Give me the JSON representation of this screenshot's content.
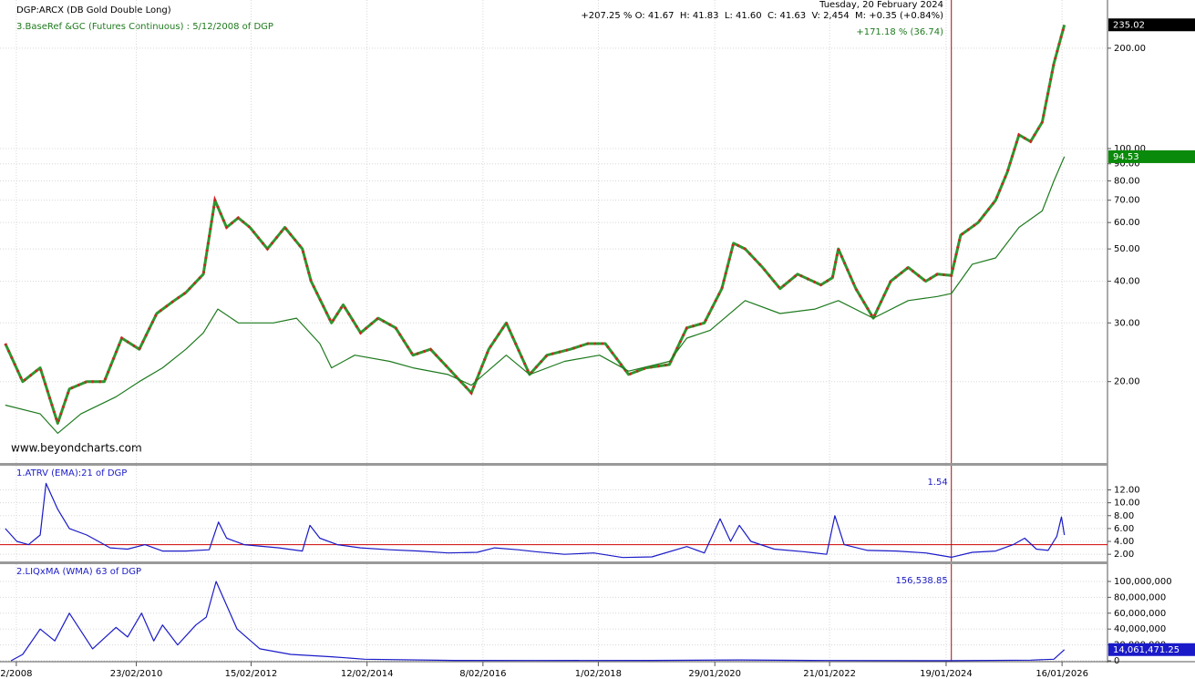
{
  "header": {
    "date": "Tuesday, 20 February 2024",
    "quote": "+207.25 % O: 41.67  H: 41.83  L: 41.60  C: 41.63  V: 2,454  M: +0.35 (+0.84%)",
    "compare": "+171.18 % (36.74)",
    "watermark": "www.beyondcharts.com"
  },
  "chart_data": [
    {
      "type": "line",
      "log_scale": true,
      "grid": true,
      "cursor_x": 2024.14,
      "xlim": [
        2007.81,
        2026.82
      ],
      "xticks": [
        {
          "value": 2008.09,
          "label": "2/2008"
        },
        {
          "value": 2010.15,
          "label": "23/02/2010"
        },
        {
          "value": 2012.12,
          "label": "15/02/2012"
        },
        {
          "value": 2014.11,
          "label": "12/02/2014"
        },
        {
          "value": 2016.1,
          "label": "8/02/2016"
        },
        {
          "value": 2018.08,
          "label": "1/02/2018"
        },
        {
          "value": 2020.08,
          "label": "29/01/2020"
        },
        {
          "value": 2022.05,
          "label": "21/01/2022"
        },
        {
          "value": 2024.05,
          "label": "19/01/2024"
        },
        {
          "value": 2026.04,
          "label": "16/01/2026"
        }
      ],
      "ylim": [
        11.4,
        279
      ],
      "yticks": [
        {
          "value": 20,
          "label": "20.00"
        },
        {
          "value": 30,
          "label": "30.00"
        },
        {
          "value": 40,
          "label": "40.00"
        },
        {
          "value": 50,
          "label": "50.00"
        },
        {
          "value": 60,
          "label": "60.00"
        },
        {
          "value": 70,
          "label": "70.00"
        },
        {
          "value": 80,
          "label": "80.00"
        },
        {
          "value": 90,
          "label": "90.00"
        },
        {
          "value": 100,
          "label": "100.00"
        },
        {
          "value": 200,
          "label": "200.00"
        }
      ],
      "series": [
        {
          "name": "DGP:ARCX (DB Gold Double Long)",
          "color": "#2e962e",
          "down_color": "#d42020",
          "end_label": 235.02,
          "end_color": "#000000",
          "x": [
            2007.9,
            2008.2,
            2008.5,
            2008.8,
            2009.0,
            2009.3,
            2009.6,
            2009.9,
            2010.2,
            2010.5,
            2010.8,
            2011.0,
            2011.3,
            2011.5,
            2011.7,
            2011.9,
            2012.1,
            2012.4,
            2012.7,
            2013.0,
            2013.15,
            2013.5,
            2013.7,
            2014.0,
            2014.3,
            2014.6,
            2014.9,
            2015.2,
            2015.5,
            2015.9,
            2016.2,
            2016.5,
            2016.9,
            2017.2,
            2017.6,
            2017.9,
            2018.2,
            2018.6,
            2018.9,
            2019.3,
            2019.6,
            2019.9,
            2020.2,
            2020.4,
            2020.6,
            2020.9,
            2021.2,
            2021.5,
            2021.9,
            2022.1,
            2022.2,
            2022.5,
            2022.8,
            2023.1,
            2023.4,
            2023.7,
            2023.9,
            2024.14,
            2024.3,
            2024.6,
            2024.9,
            2025.1,
            2025.3,
            2025.5,
            2025.7,
            2025.9,
            2026.08
          ],
          "values": [
            26,
            20,
            22,
            15,
            19,
            20,
            20,
            27,
            25,
            32,
            35,
            37,
            42,
            70,
            58,
            62,
            58,
            50,
            58,
            50,
            40,
            30,
            34,
            28,
            31,
            29,
            24,
            25,
            22,
            18.5,
            25,
            30,
            21,
            24,
            25,
            26,
            26,
            21,
            22,
            22.5,
            29,
            30,
            38,
            52,
            50,
            44,
            38,
            42,
            39,
            41,
            50,
            38,
            31,
            40,
            44,
            40,
            42,
            41.63,
            55,
            60,
            70,
            85,
            110,
            105,
            120,
            180,
            235.02
          ]
        },
        {
          "name": "3.BaseRef &GC (Futures Continuous) : 5/12/2008  of DGP",
          "color": "#1e7a1e",
          "end_label": 94.53,
          "end_color": "#0a8a0a",
          "x": [
            2007.9,
            2008.5,
            2008.8,
            2009.2,
            2009.8,
            2010.2,
            2010.6,
            2011.0,
            2011.3,
            2011.55,
            2011.9,
            2012.5,
            2012.9,
            2013.3,
            2013.5,
            2013.9,
            2014.5,
            2014.9,
            2015.5,
            2015.9,
            2016.5,
            2016.9,
            2017.5,
            2018.1,
            2018.6,
            2019.3,
            2019.6,
            2020.0,
            2020.6,
            2021.2,
            2021.8,
            2022.2,
            2022.8,
            2023.4,
            2023.9,
            2024.14,
            2024.5,
            2024.9,
            2025.3,
            2025.7,
            2025.9,
            2026.08
          ],
          "values": [
            17,
            16,
            14,
            16,
            18,
            20,
            22,
            25,
            28,
            33,
            30,
            30,
            31,
            26,
            22,
            24,
            23,
            22,
            21,
            19.5,
            24,
            21,
            23,
            24,
            21.5,
            23,
            27,
            28.5,
            35,
            32,
            33,
            35,
            31,
            35,
            36,
            36.74,
            45,
            47,
            58,
            65,
            80,
            94.53
          ]
        }
      ]
    },
    {
      "type": "line",
      "title": "1.ATRV (EMA):21 of DGP",
      "grid": true,
      "cursor_x": 2024.14,
      "cursor_label": 1.54,
      "ref_line": 3.5,
      "ref_color": "#d42020",
      "xlim": [
        2007.81,
        2026.82
      ],
      "ylim": [
        0.89,
        15.75
      ],
      "yticks": [
        {
          "value": 2,
          "label": "2.00"
        },
        {
          "value": 4,
          "label": "4.00"
        },
        {
          "value": 6,
          "label": "6.00"
        },
        {
          "value": 8,
          "label": "8.00"
        },
        {
          "value": 10,
          "label": "10.00"
        },
        {
          "value": 12,
          "label": "12.00"
        }
      ],
      "series": [
        {
          "name": "ATRV",
          "color": "#1a1ac8",
          "x": [
            2007.9,
            2008.1,
            2008.3,
            2008.5,
            2008.6,
            2008.8,
            2009.0,
            2009.3,
            2009.5,
            2009.7,
            2010.0,
            2010.3,
            2010.6,
            2011.0,
            2011.4,
            2011.56,
            2011.7,
            2012.0,
            2012.6,
            2013.0,
            2013.13,
            2013.3,
            2013.6,
            2014.0,
            2014.5,
            2015.0,
            2015.5,
            2016.0,
            2016.3,
            2016.7,
            2017.0,
            2017.5,
            2018.0,
            2018.5,
            2019.0,
            2019.6,
            2019.9,
            2020.17,
            2020.35,
            2020.5,
            2020.7,
            2021.1,
            2021.6,
            2022.0,
            2022.14,
            2022.3,
            2022.7,
            2023.2,
            2023.7,
            2024.14,
            2024.5,
            2024.9,
            2025.2,
            2025.4,
            2025.6,
            2025.8,
            2025.95,
            2026.03,
            2026.08
          ],
          "values": [
            6,
            4,
            3.5,
            5,
            13,
            9,
            6,
            5,
            4,
            3,
            2.8,
            3.5,
            2.5,
            2.5,
            2.7,
            7,
            4.5,
            3.5,
            3,
            2.5,
            6.5,
            4.5,
            3.5,
            3,
            2.7,
            2.5,
            2.2,
            2.3,
            3,
            2.7,
            2.4,
            2.0,
            2.2,
            1.5,
            1.6,
            3.2,
            2.2,
            7.5,
            4,
            6.5,
            4,
            2.8,
            2.4,
            2.0,
            8,
            3.5,
            2.6,
            2.5,
            2.2,
            1.54,
            2.3,
            2.5,
            3.5,
            4.5,
            2.8,
            2.6,
            4.8,
            7.8,
            5
          ]
        }
      ]
    },
    {
      "type": "line",
      "title": "2.LIQxMA (WMA) 63 of DGP",
      "grid": true,
      "cursor_x": 2024.14,
      "cursor_label": {
        "value": 156538.85,
        "label": "156,538.85"
      },
      "xlim": [
        2007.81,
        2026.82
      ],
      "ylim": [
        0,
        121800000
      ],
      "yticks": [
        0,
        {
          "value": 20000000,
          "label": "20,000,000"
        },
        {
          "value": 40000000,
          "label": "40,000,000"
        },
        {
          "value": 60000000,
          "label": "60,000,000"
        },
        {
          "value": 80000000,
          "label": "80,000,000"
        },
        {
          "value": 100000000,
          "label": "100,000,000"
        }
      ],
      "series": [
        {
          "name": "LIQxMA",
          "color": "#1a1ac8",
          "end_label": {
            "value": 14061471.25,
            "label": "14,061,471.25"
          },
          "end_color": "#1a1ac8",
          "x": [
            2008.0,
            2008.2,
            2008.5,
            2008.75,
            2009.0,
            2009.4,
            2009.8,
            2010.0,
            2010.24,
            2010.45,
            2010.6,
            2010.86,
            2011.17,
            2011.35,
            2011.52,
            2011.7,
            2011.88,
            2012.27,
            2012.8,
            2013.5,
            2014.07,
            2015.6,
            2017.0,
            2019.0,
            2020.5,
            2022.0,
            2024.14,
            2025.5,
            2025.9,
            2026.08
          ],
          "values": [
            0,
            8000000,
            40000000,
            25000000,
            60000000,
            15000000,
            42000000,
            30000000,
            60000000,
            25000000,
            45000000,
            20000000,
            45000000,
            55000000,
            100000000,
            70000000,
            40000000,
            15000000,
            8000000,
            5000000,
            2000000,
            500000,
            300000,
            500000,
            1000000,
            400000,
            156538.85,
            800000,
            2000000,
            14061471.25
          ]
        }
      ]
    }
  ]
}
